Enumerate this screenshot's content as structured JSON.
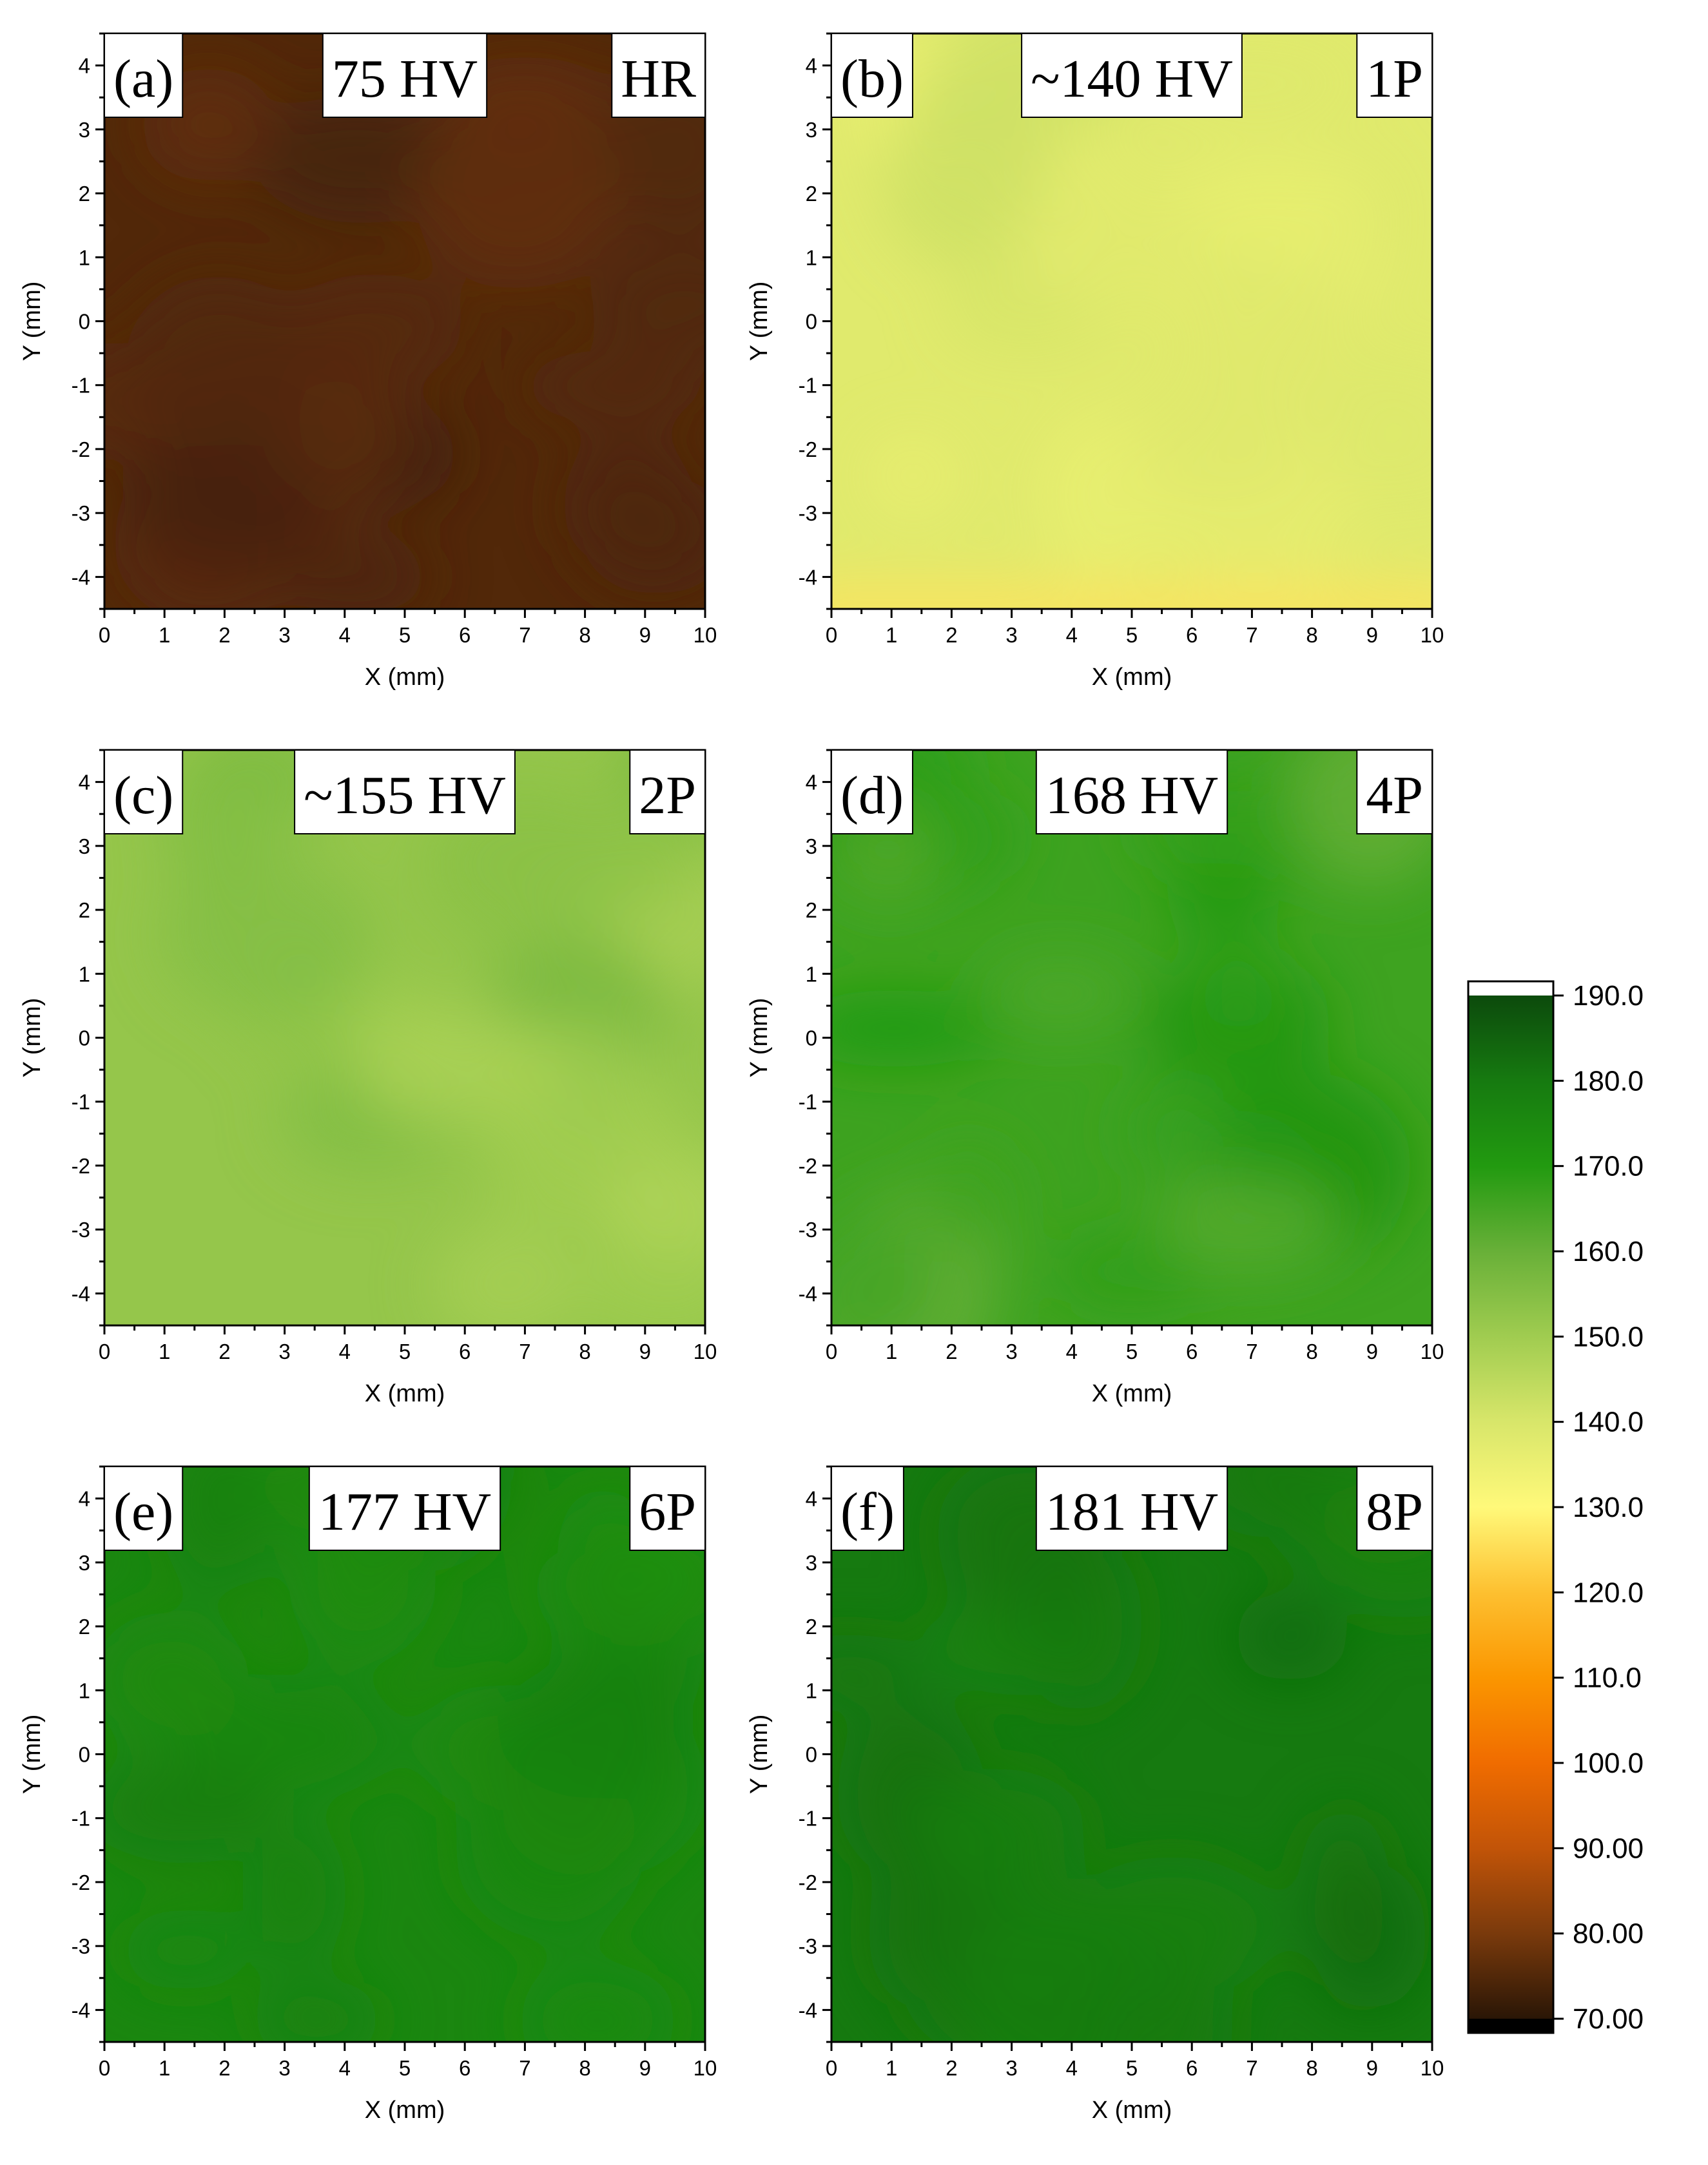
{
  "chart_data": [
    {
      "type": "heatmap",
      "panel": "(a)",
      "hardness": "75 HV",
      "condition": "HR",
      "xlabel": "X (mm)",
      "ylabel": "Y (mm)",
      "xlim": [
        0,
        10
      ],
      "ylim": [
        -4.5,
        4.5
      ],
      "x_ticks": [
        "0",
        "1",
        "2",
        "3",
        "4",
        "5",
        "6",
        "7",
        "8",
        "9",
        "10"
      ],
      "y_ticks": [
        "4",
        "3",
        "2",
        "1",
        "0",
        "-1",
        "-2",
        "-3",
        "-4"
      ],
      "mean_value": 75,
      "variation": 3,
      "fill": "#8a3f0a"
    },
    {
      "type": "heatmap",
      "panel": "(b)",
      "hardness": "~140 HV",
      "condition": "1P",
      "xlabel": "X (mm)",
      "ylabel": "Y (mm)",
      "xlim": [
        0,
        10
      ],
      "ylim": [
        -4.5,
        4.5
      ],
      "x_ticks": [
        "0",
        "1",
        "2",
        "3",
        "4",
        "5",
        "6",
        "7",
        "8",
        "9",
        "10"
      ],
      "y_ticks": [
        "4",
        "3",
        "2",
        "1",
        "0",
        "-1",
        "-2",
        "-3",
        "-4"
      ],
      "mean_value": 138,
      "variation": 4,
      "bottom_edge_value": 126,
      "fill": "#d6e57a"
    },
    {
      "type": "heatmap",
      "panel": "(c)",
      "hardness": "~155 HV",
      "condition": "2P",
      "xlabel": "X (mm)",
      "ylabel": "Y (mm)",
      "xlim": [
        0,
        10
      ],
      "ylim": [
        -4.5,
        4.5
      ],
      "x_ticks": [
        "0",
        "1",
        "2",
        "3",
        "4",
        "5",
        "6",
        "7",
        "8",
        "9",
        "10"
      ],
      "y_ticks": [
        "4",
        "3",
        "2",
        "1",
        "0",
        "-1",
        "-2",
        "-3",
        "-4"
      ],
      "mean_value": 152,
      "variation": 5,
      "fill": "#a3cc52"
    },
    {
      "type": "heatmap",
      "panel": "(d)",
      "hardness": "168 HV",
      "condition": "4P",
      "xlabel": "X (mm)",
      "ylabel": "Y (mm)",
      "xlim": [
        0,
        10
      ],
      "ylim": [
        -4.5,
        4.5
      ],
      "x_ticks": [
        "0",
        "1",
        "2",
        "3",
        "4",
        "5",
        "6",
        "7",
        "8",
        "9",
        "10"
      ],
      "y_ticks": [
        "4",
        "3",
        "2",
        "1",
        "0",
        "-1",
        "-2",
        "-3",
        "-4"
      ],
      "mean_value": 166,
      "variation": 6,
      "fill": "#5daa35"
    },
    {
      "type": "heatmap",
      "panel": "(e)",
      "hardness": "177 HV",
      "condition": "6P",
      "xlabel": "X (mm)",
      "ylabel": "Y (mm)",
      "xlim": [
        0,
        10
      ],
      "ylim": [
        -4.5,
        4.5
      ],
      "x_ticks": [
        "0",
        "1",
        "2",
        "3",
        "4",
        "5",
        "6",
        "7",
        "8",
        "9",
        "10"
      ],
      "y_ticks": [
        "4",
        "3",
        "2",
        "1",
        "0",
        "-1",
        "-2",
        "-3",
        "-4"
      ],
      "mean_value": 176,
      "variation": 3,
      "fill": "#2d8c1e"
    },
    {
      "type": "heatmap",
      "panel": "(f)",
      "hardness": "181 HV",
      "condition": "8P",
      "xlabel": "X (mm)",
      "ylabel": "Y (mm)",
      "xlim": [
        0,
        10
      ],
      "ylim": [
        -4.5,
        4.5
      ],
      "x_ticks": [
        "0",
        "1",
        "2",
        "3",
        "4",
        "5",
        "6",
        "7",
        "8",
        "9",
        "10"
      ],
      "y_ticks": [
        "4",
        "3",
        "2",
        "1",
        "0",
        "-1",
        "-2",
        "-3",
        "-4"
      ],
      "mean_value": 180,
      "variation": 3,
      "fill": "#227c16"
    }
  ],
  "colorbar": {
    "min": 70,
    "max": 190,
    "tick_labels": [
      "190.0",
      "180.0",
      "170.0",
      "160.0",
      "150.0",
      "140.0",
      "130.0",
      "120.0",
      "110.0",
      "100.0",
      "90.00",
      "80.00",
      "70.00"
    ],
    "tick_values": [
      190,
      180,
      170,
      160,
      150,
      140,
      130,
      120,
      110,
      100,
      90,
      80,
      70
    ],
    "over_color": "#ffffff",
    "under_color": "#000000",
    "stops": [
      {
        "value": 70,
        "color": "#2a1606"
      },
      {
        "value": 80,
        "color": "#7a3a0c"
      },
      {
        "value": 90,
        "color": "#c25408"
      },
      {
        "value": 100,
        "color": "#f06c00"
      },
      {
        "value": 110,
        "color": "#fb9600"
      },
      {
        "value": 120,
        "color": "#fdc030"
      },
      {
        "value": 130,
        "color": "#fff97a"
      },
      {
        "value": 140,
        "color": "#d8e66a"
      },
      {
        "value": 150,
        "color": "#a0cc50"
      },
      {
        "value": 160,
        "color": "#68b038"
      },
      {
        "value": 170,
        "color": "#229a10"
      },
      {
        "value": 180,
        "color": "#167a10"
      },
      {
        "value": 190,
        "color": "#0c4a0c"
      }
    ]
  }
}
